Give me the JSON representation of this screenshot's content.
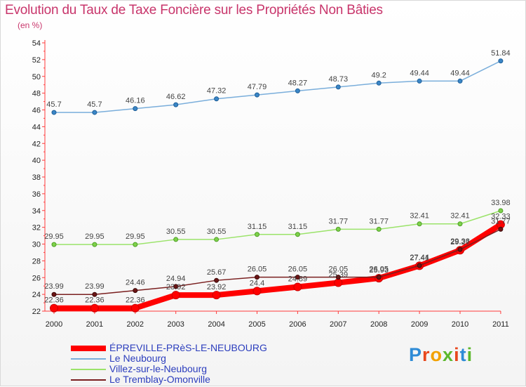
{
  "title": "Evolution du Taux de Taxe Foncière sur les Propriétés Non Bâties",
  "unit_label": "(en %)",
  "logo": {
    "text": "Proxiti",
    "colors": [
      "#2e8bd6",
      "#e8471d",
      "#f2a100",
      "#5cb82c",
      "#e8471d",
      "#2e8bd6",
      "#5cb82c"
    ]
  },
  "chart_data": {
    "type": "line",
    "title": "Evolution du Taux de Taxe Foncière sur les Propriétés Non Bâties",
    "ylabel": "(en %)",
    "xlabel": "",
    "x": [
      "2000",
      "2001",
      "2002",
      "2003",
      "2004",
      "2005",
      "2006",
      "2007",
      "2008",
      "2009",
      "2010",
      "2011"
    ],
    "ylim": [
      22,
      54
    ],
    "yticks": [
      22,
      24,
      26,
      28,
      30,
      32,
      34,
      36,
      38,
      40,
      42,
      44,
      46,
      48,
      50,
      52,
      54
    ],
    "grid": false,
    "legend": "bottom-left",
    "series": [
      {
        "name": "ÉPREVILLE-PRèS-LE-NEUBOURG",
        "color": "#ff0000",
        "values": [
          22.36,
          22.36,
          22.36,
          23.92,
          23.92,
          24.4,
          24.89,
          25.39,
          25.93,
          27.41,
          29.27,
          32.33
        ],
        "labels": [
          "22.36",
          "22.36",
          "22.36",
          "23.92",
          "23.92",
          "24.4",
          "24.89",
          "25.39",
          "25.93",
          "27.41",
          "29.27",
          "32.33"
        ]
      },
      {
        "name": "Le Neubourg",
        "color": "#7aaedb",
        "values": [
          45.7,
          45.7,
          46.16,
          46.62,
          47.32,
          47.79,
          48.27,
          48.73,
          49.2,
          49.44,
          49.44,
          51.84
        ],
        "labels": [
          "45.7",
          "45.7",
          "46.16",
          "46.62",
          "47.32",
          "47.79",
          "48.27",
          "48.73",
          "49.2",
          "49.44",
          "49.44",
          "51.84"
        ]
      },
      {
        "name": "Villez-sur-le-Neubourg",
        "color": "#9be36a",
        "values": [
          29.95,
          29.95,
          29.95,
          30.55,
          30.55,
          31.15,
          31.15,
          31.77,
          31.77,
          32.41,
          32.41,
          33.98
        ],
        "labels": [
          "29.95",
          "29.95",
          "29.95",
          "30.55",
          "30.55",
          "31.15",
          "31.15",
          "31.77",
          "31.77",
          "32.41",
          "32.41",
          "33.98"
        ]
      },
      {
        "name": "Le Tremblay-Omonville",
        "color": "#7a1f1f",
        "values": [
          23.99,
          23.99,
          24.46,
          24.94,
          25.67,
          26.05,
          26.05,
          26.05,
          26.05,
          27.44,
          29.36,
          31.77
        ],
        "labels": [
          "23.99",
          "23.99",
          "24.46",
          "24.94",
          "25.67",
          "26.05",
          "26.05",
          "26.05",
          "26.05",
          "27.44",
          "29.36",
          "31.77"
        ]
      }
    ]
  }
}
